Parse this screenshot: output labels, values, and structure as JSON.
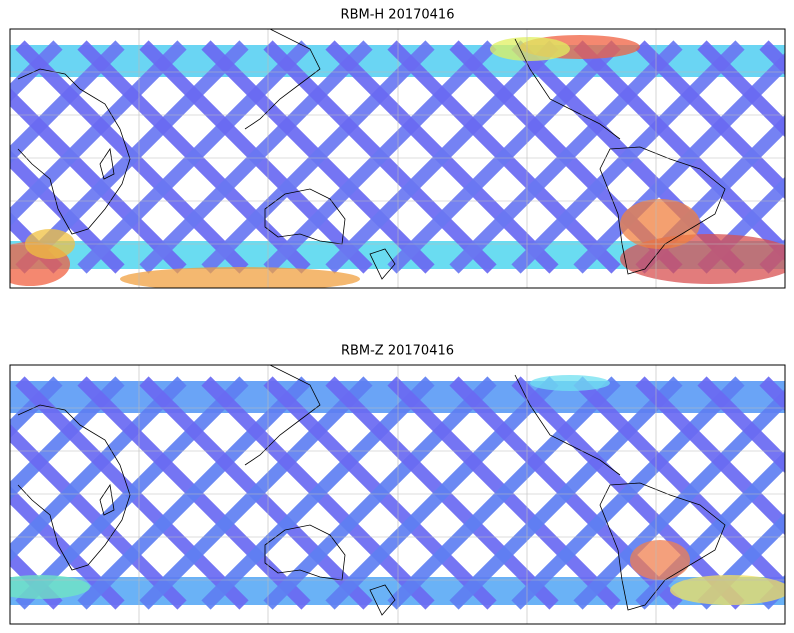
{
  "maps": [
    {
      "title": "RBM-H 20170416"
    },
    {
      "title": "RBM-Z 20170416"
    }
  ]
}
